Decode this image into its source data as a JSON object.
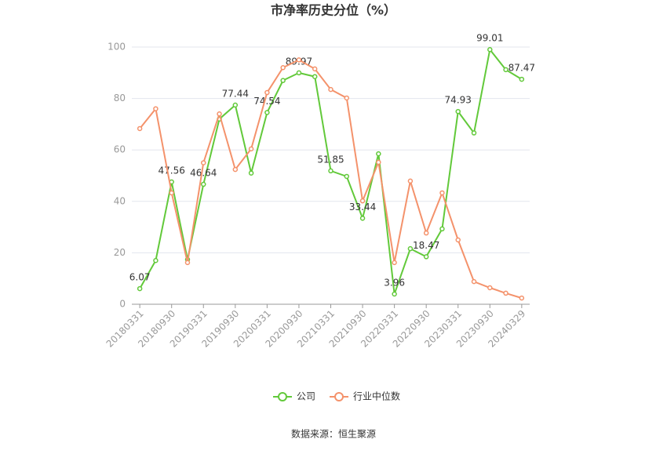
{
  "chart_data": {
    "type": "line",
    "title": "市净率历史分位（%）",
    "source": "数据来源：恒生聚源",
    "categories": [
      "20180331",
      null,
      "20180930",
      null,
      "20190331",
      null,
      "20190930",
      null,
      "20200331",
      null,
      "20200930",
      null,
      "20210331",
      null,
      "20210930",
      null,
      "20220331",
      null,
      "20220930",
      null,
      "20230331",
      null,
      "20230930",
      null,
      "20240329"
    ],
    "series": [
      {
        "name": "公司",
        "color": "#62c93a",
        "values": [
          6.07,
          17,
          47.56,
          17.4,
          46.64,
          72,
          77.44,
          51,
          74.54,
          87,
          89.97,
          88.5,
          51.85,
          49.7,
          33.44,
          58.5,
          3.96,
          21.6,
          18.47,
          29.3,
          74.93,
          66.6,
          99.01,
          91.2,
          87.47
        ],
        "value_labels": [
          "6.07",
          null,
          "47.56",
          null,
          "46.64",
          null,
          "77.44",
          null,
          "74.54",
          null,
          "89.97",
          null,
          "51.85",
          null,
          "33.44",
          null,
          "3.96",
          null,
          "18.47",
          null,
          "74.93",
          null,
          "99.01",
          null,
          "87.47"
        ]
      },
      {
        "name": "行业中位数",
        "color": "#f4926b",
        "values": [
          68.3,
          76,
          43.3,
          16.2,
          55,
          74,
          52.4,
          60.4,
          82.3,
          92,
          95,
          91.5,
          83.5,
          80.2,
          40.2,
          55.2,
          16.2,
          47.9,
          27.7,
          43.3,
          25,
          8.8,
          6.4,
          4.3,
          2.4
        ]
      }
    ],
    "ylim": [
      0,
      100
    ],
    "yticks": [
      0,
      20,
      40,
      60,
      80,
      100
    ],
    "grid": true
  }
}
